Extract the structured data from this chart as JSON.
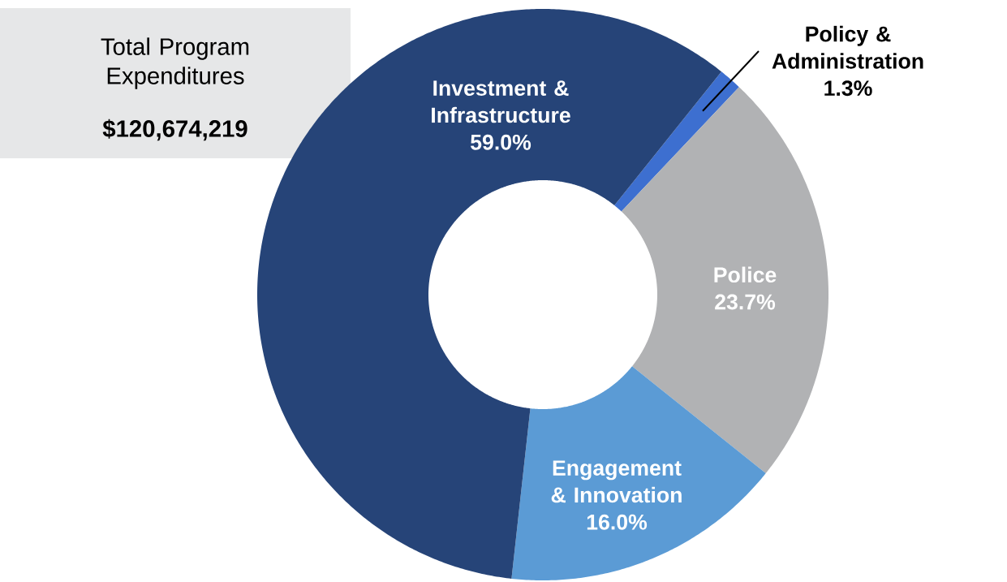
{
  "chart_data": {
    "type": "donut",
    "title": "Total Program Expenditures",
    "subtitle": "$120,674,219",
    "categories": [
      "Policy & Administration",
      "Police",
      "Engagement & Innovation",
      "Investment & Infrastructure"
    ],
    "values": [
      1.3,
      23.7,
      16.0,
      59.0
    ],
    "colors": [
      "#3d6fd0",
      "#b1b2b4",
      "#5b9bd5",
      "#264478"
    ],
    "value_labels": [
      "1.3%",
      "23.7%",
      "16.0%",
      "59.0%"
    ]
  }
}
